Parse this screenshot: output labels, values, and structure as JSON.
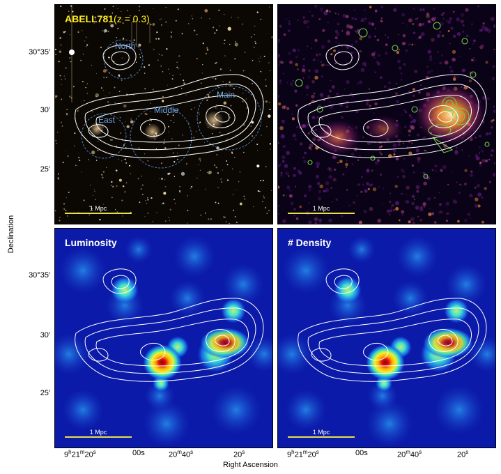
{
  "panels": {
    "optical": {
      "title": "ABELL781",
      "redshift": "(z = 0.3)",
      "scale": "1 Mpc",
      "regions": [
        "North",
        "East",
        "Middle",
        "Main"
      ]
    },
    "xray": {
      "scale": "1 Mpc"
    },
    "luminosity": {
      "title": "Luminosity",
      "scale": "1 Mpc"
    },
    "density": {
      "title": "# Density",
      "scale": "1 Mpc"
    }
  },
  "axes": {
    "ylabel": "Declination",
    "xlabel": "Right Ascension",
    "dec_ticks": [
      "30°35′",
      "30′",
      "25′"
    ],
    "ra_ticks": {
      "first": "9h21m20s",
      "t2": "00s",
      "t3": "20m40s",
      "t4": "20s"
    }
  },
  "colors": {
    "title_yellow": "#ffee22",
    "region_blue": "#6fa6e8",
    "scalebar": "#e8e04a"
  }
}
